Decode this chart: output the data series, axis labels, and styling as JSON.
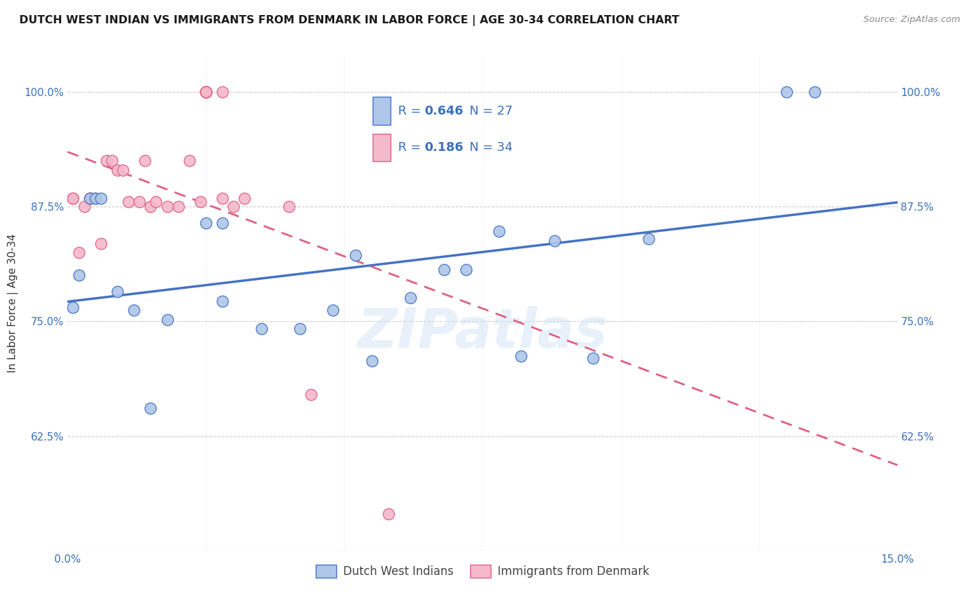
{
  "title": "DUTCH WEST INDIAN VS IMMIGRANTS FROM DENMARK IN LABOR FORCE | AGE 30-34 CORRELATION CHART",
  "source": "Source: ZipAtlas.com",
  "ylabel": "In Labor Force | Age 30-34",
  "xlim": [
    0.0,
    0.15
  ],
  "ylim": [
    0.5,
    1.04
  ],
  "yticks": [
    0.625,
    0.75,
    0.875,
    1.0
  ],
  "ytick_labels": [
    "62.5%",
    "75.0%",
    "87.5%",
    "100.0%"
  ],
  "xticks": [
    0.0,
    0.025,
    0.05,
    0.075,
    0.1,
    0.125,
    0.15
  ],
  "xtick_labels": [
    "0.0%",
    "",
    "",
    "",
    "",
    "",
    "15.0%"
  ],
  "blue_R": 0.646,
  "blue_N": 27,
  "pink_R": 0.186,
  "pink_N": 34,
  "blue_color": "#aec6e8",
  "pink_color": "#f5b8cb",
  "blue_line_color": "#4472c4",
  "pink_line_color": "#e06080",
  "accent_color": "#3a6fbf",
  "background_color": "#ffffff",
  "grid_color": "#cccccc",
  "blue_x": [
    0.001,
    0.002,
    0.004,
    0.005,
    0.006,
    0.009,
    0.012,
    0.015,
    0.018,
    0.025,
    0.028,
    0.028,
    0.035,
    0.042,
    0.048,
    0.052,
    0.055,
    0.062,
    0.068,
    0.072,
    0.078,
    0.082,
    0.088,
    0.095,
    0.105,
    0.13,
    0.135
  ],
  "blue_y": [
    0.765,
    0.8,
    0.884,
    0.884,
    0.884,
    0.782,
    0.762,
    0.655,
    0.752,
    0.857,
    0.772,
    0.857,
    0.742,
    0.742,
    0.762,
    0.822,
    0.707,
    0.776,
    0.806,
    0.806,
    0.848,
    0.712,
    0.838,
    0.71,
    0.84,
    1.0,
    1.0
  ],
  "pink_x": [
    0.001,
    0.001,
    0.002,
    0.003,
    0.004,
    0.004,
    0.005,
    0.006,
    0.007,
    0.008,
    0.009,
    0.01,
    0.011,
    0.013,
    0.014,
    0.015,
    0.016,
    0.018,
    0.02,
    0.022,
    0.024,
    0.025,
    0.025,
    0.025,
    0.025,
    0.025,
    0.025,
    0.028,
    0.028,
    0.03,
    0.032,
    0.04,
    0.044,
    0.058
  ],
  "pink_y": [
    0.884,
    0.884,
    0.825,
    0.875,
    0.884,
    0.884,
    0.884,
    0.835,
    0.925,
    0.925,
    0.915,
    0.915,
    0.88,
    0.88,
    0.925,
    0.875,
    0.88,
    0.875,
    0.875,
    0.925,
    0.88,
    1.0,
    1.0,
    1.0,
    1.0,
    1.0,
    1.0,
    0.884,
    1.0,
    0.875,
    0.884,
    0.875,
    0.67,
    0.54
  ],
  "watermark": "ZIPatlas"
}
